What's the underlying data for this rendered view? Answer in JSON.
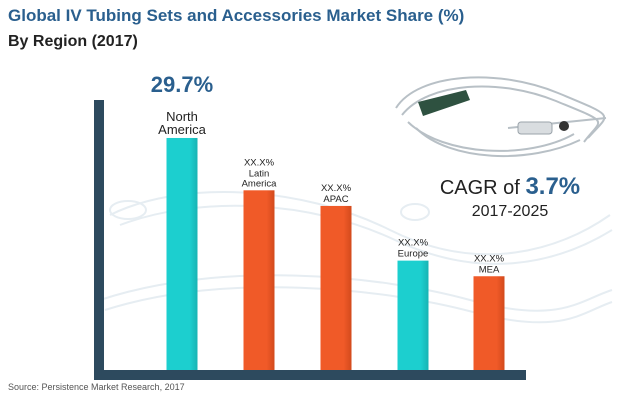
{
  "title": "Global IV Tubing Sets and Accessories Market Share (%)",
  "subtitle": "By Region  (2017)",
  "source": "Source: Persistence Market Research, 2017",
  "cagr": {
    "prefix": "CAGR of",
    "value": "3.7%",
    "period": "2017-2025"
  },
  "colors": {
    "accent": "#2a5f8e",
    "axis": "#2d4a5e",
    "bar_highlight": "#1ccfcf",
    "bar_other": "#f05a28"
  },
  "chart_data": {
    "type": "bar",
    "categories": [
      "North America",
      "Latin America",
      "APAC",
      "Europe",
      "MEA"
    ],
    "values": [
      29.7,
      23,
      21,
      14,
      12
    ],
    "value_labels": [
      "29.7%",
      "XX.X%",
      "XX.X%",
      "XX.X%",
      "XX.X%"
    ],
    "category_lines": [
      [
        "North",
        "America"
      ],
      [
        "Latin",
        "America"
      ],
      [
        "APAC"
      ],
      [
        "Europe"
      ],
      [
        "MEA"
      ]
    ],
    "bar_colors": [
      "#1ccfcf",
      "#f05a28",
      "#f05a28",
      "#1ccfcf",
      "#f05a28"
    ],
    "ylim": [
      0,
      32
    ],
    "grid": false,
    "legend": "none"
  }
}
